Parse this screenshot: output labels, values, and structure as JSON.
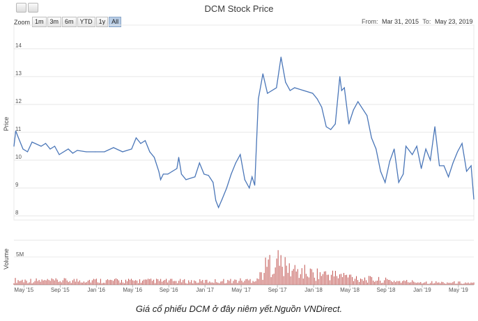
{
  "toolbar": {
    "buttons": [
      "download-icon",
      "print-icon"
    ]
  },
  "chart_data": {
    "type": "line",
    "title": "DCM Stock Price",
    "zoom_label": "Zoom",
    "zoom_buttons": [
      "1m",
      "3m",
      "6m",
      "YTD",
      "1y",
      "All"
    ],
    "zoom_selected": "All",
    "range_from_label": "From:",
    "range_from": "Mar 31, 2015",
    "range_to_label": "To:",
    "range_to": "May 23, 2019",
    "ylabel": "Price",
    "volume_label": "Volume",
    "price_ylim": [
      7.85,
      14.85
    ],
    "price_ticks": [
      "8",
      "9",
      "10",
      "11",
      "12",
      "13",
      "14"
    ],
    "volume_ylim": [
      0,
      8
    ],
    "volume_ticks": [
      "5M"
    ],
    "x_ticks": [
      "May '15",
      "Sep '15",
      "Jan '16",
      "May '16",
      "Sep '16",
      "Jan '17",
      "May '17",
      "Sep '17",
      "Jan '18",
      "May '18",
      "Sep '18",
      "Jan '19",
      "May '19"
    ],
    "x_range_months": [
      0,
      50.8
    ],
    "price_series": {
      "x": [
        0,
        0.2,
        0.5,
        1,
        1.5,
        2,
        3,
        3.5,
        4,
        4.5,
        5,
        6,
        6.5,
        7,
        8,
        9,
        10,
        11,
        12,
        13,
        13.5,
        14,
        14.5,
        15,
        15.5,
        16,
        16.2,
        16.5,
        17,
        17.5,
        18,
        18.2,
        18.5,
        19,
        20,
        20.5,
        21,
        21.5,
        22,
        22.3,
        22.6,
        23,
        23.5,
        24,
        24.5,
        25,
        25.5,
        26,
        26.3,
        26.6,
        27,
        27.5,
        28,
        29,
        29.5,
        30,
        30.5,
        31,
        32,
        33,
        33.5,
        34,
        34.5,
        35,
        35.5,
        36,
        36.2,
        36.5,
        37,
        37.5,
        38,
        39,
        39.5,
        40,
        40.5,
        41,
        41.5,
        42,
        42.5,
        43,
        43.3,
        44,
        44.5,
        45,
        45.5,
        46,
        46.5,
        47,
        47.5,
        48,
        48.5,
        49,
        49.5,
        50,
        50.5,
        50.8
      ],
      "y": [
        10.5,
        11.05,
        10.8,
        10.4,
        10.3,
        10.65,
        10.5,
        10.6,
        10.4,
        10.5,
        10.2,
        10.4,
        10.25,
        10.35,
        10.3,
        10.3,
        10.3,
        10.45,
        10.3,
        10.4,
        10.8,
        10.6,
        10.7,
        10.3,
        10.1,
        9.6,
        9.3,
        9.5,
        9.5,
        9.6,
        9.7,
        10.1,
        9.5,
        9.3,
        9.4,
        9.9,
        9.5,
        9.45,
        9.2,
        8.55,
        8.3,
        8.6,
        9.0,
        9.5,
        9.9,
        10.2,
        9.3,
        9.0,
        9.4,
        9.1,
        12.2,
        13.1,
        12.4,
        12.6,
        13.7,
        12.8,
        12.5,
        12.6,
        12.5,
        12.4,
        12.2,
        11.9,
        11.2,
        11.1,
        11.3,
        13.0,
        12.5,
        12.6,
        11.3,
        11.8,
        12.1,
        11.6,
        10.8,
        10.4,
        9.6,
        9.2,
        9.95,
        10.4,
        9.2,
        9.5,
        10.5,
        10.2,
        10.5,
        9.7,
        10.4,
        10.0,
        11.2,
        9.8,
        9.8,
        9.4,
        9.9,
        10.3,
        10.6,
        9.6,
        9.8,
        8.6
      ]
    },
    "volume_series": {
      "x": [
        0,
        4,
        8,
        12,
        16,
        20,
        24,
        26,
        27,
        28,
        29,
        30,
        31,
        33,
        35,
        37,
        39,
        41,
        43,
        45,
        47,
        49,
        50.8
      ],
      "y": [
        0.8,
        0.7,
        0.8,
        0.7,
        0.7,
        0.6,
        0.7,
        0.8,
        1.2,
        3.5,
        4.5,
        3.0,
        2.5,
        2.0,
        1.8,
        1.5,
        1.0,
        0.8,
        0.6,
        0.5,
        0.4,
        0.4,
        0.3
      ]
    }
  },
  "caption": "Giá cổ phiếu DCM ở đây niêm yết.Nguồn VNDirect."
}
